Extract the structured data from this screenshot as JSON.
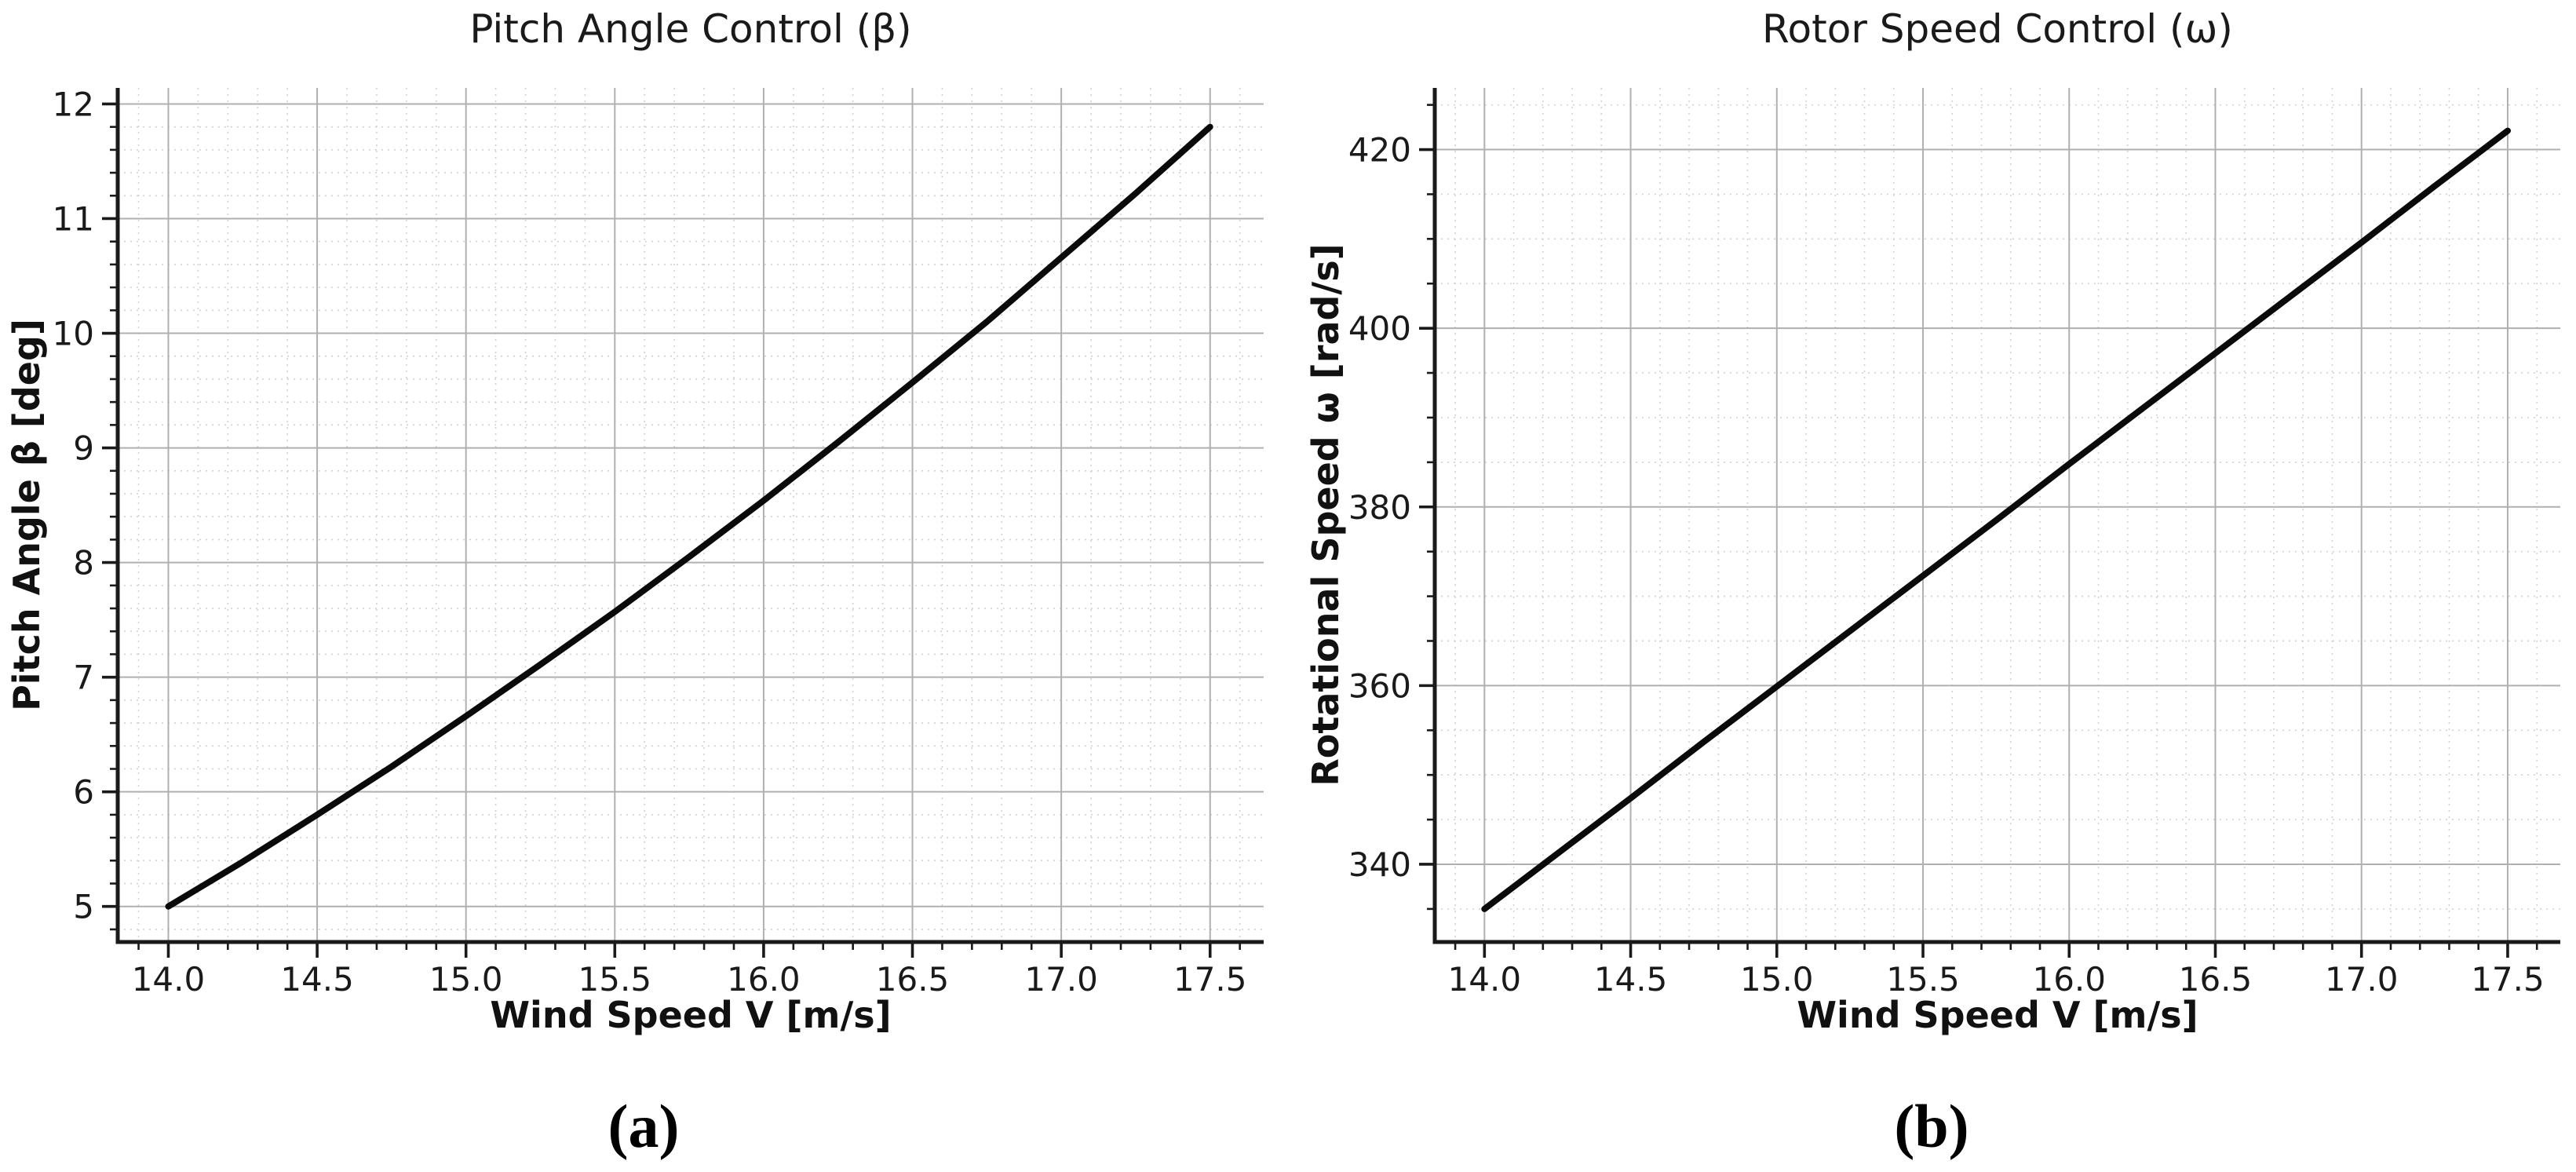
{
  "colors": {
    "background": "#ffffff",
    "curve": "#0a0a0a",
    "grid_major": "#b0b0b0",
    "grid_minor": "#d2d2d2",
    "axis": "#1a1a1a",
    "text": "#1a1a1a"
  },
  "chart_data": [
    {
      "type": "line",
      "panel": "left",
      "title": "Pitch Angle Control (β)",
      "caption": "(a)",
      "xlabel": "Wind Speed V [m/s]",
      "ylabel": "Pitch Angle β [deg]",
      "x": [
        14.0,
        14.25,
        14.5,
        14.75,
        15.0,
        15.25,
        15.5,
        15.75,
        16.0,
        16.25,
        16.5,
        16.75,
        17.0,
        17.25,
        17.5
      ],
      "y": [
        5.0,
        5.39,
        5.8,
        6.22,
        6.66,
        7.11,
        7.57,
        8.05,
        8.54,
        9.05,
        9.57,
        10.1,
        10.66,
        11.22,
        11.8
      ],
      "xlim": [
        13.83,
        17.68
      ],
      "ylim": [
        4.69,
        12.14
      ],
      "xticks": [
        14.0,
        14.5,
        15.0,
        15.5,
        16.0,
        16.5,
        17.0,
        17.5
      ],
      "xtick_labels": [
        "14.0",
        "14.5",
        "15.0",
        "15.5",
        "16.0",
        "16.5",
        "17.0",
        "17.5"
      ],
      "yticks": [
        5,
        6,
        7,
        8,
        9,
        10,
        11,
        12
      ],
      "ytick_labels": [
        "5",
        "6",
        "7",
        "8",
        "9",
        "10",
        "11",
        "12"
      ],
      "x_minor_step": 0.1,
      "y_minor_step": 0.2,
      "grid": true,
      "legend": false,
      "line_color": "#0a0a0a",
      "line_width": 8
    },
    {
      "type": "line",
      "panel": "right",
      "title": "Rotor Speed Control (ω)",
      "caption": "(b)",
      "xlabel": "Wind Speed V [m/s]",
      "ylabel": "Rotational Speed ω [rad/s]",
      "x": [
        14.0,
        14.25,
        14.5,
        14.75,
        15.0,
        15.25,
        15.5,
        15.75,
        16.0,
        16.25,
        16.5,
        16.75,
        17.0,
        17.25,
        17.5
      ],
      "y": [
        335.0,
        341.2,
        347.4,
        353.7,
        359.9,
        366.1,
        372.3,
        378.5,
        384.8,
        391.0,
        397.2,
        403.4,
        409.6,
        415.9,
        422.1
      ],
      "xlim": [
        13.83,
        17.68
      ],
      "ylim": [
        331.3,
        426.9
      ],
      "xticks": [
        14.0,
        14.5,
        15.0,
        15.5,
        16.0,
        16.5,
        17.0,
        17.5
      ],
      "xtick_labels": [
        "14.0",
        "14.5",
        "15.0",
        "15.5",
        "16.0",
        "16.5",
        "17.0",
        "17.5"
      ],
      "yticks": [
        340,
        360,
        380,
        400,
        420
      ],
      "ytick_labels": [
        "340",
        "360",
        "380",
        "400",
        "420"
      ],
      "x_minor_step": 0.1,
      "y_minor_step": 5,
      "grid": true,
      "legend": false,
      "line_color": "#0a0a0a",
      "line_width": 8
    }
  ]
}
